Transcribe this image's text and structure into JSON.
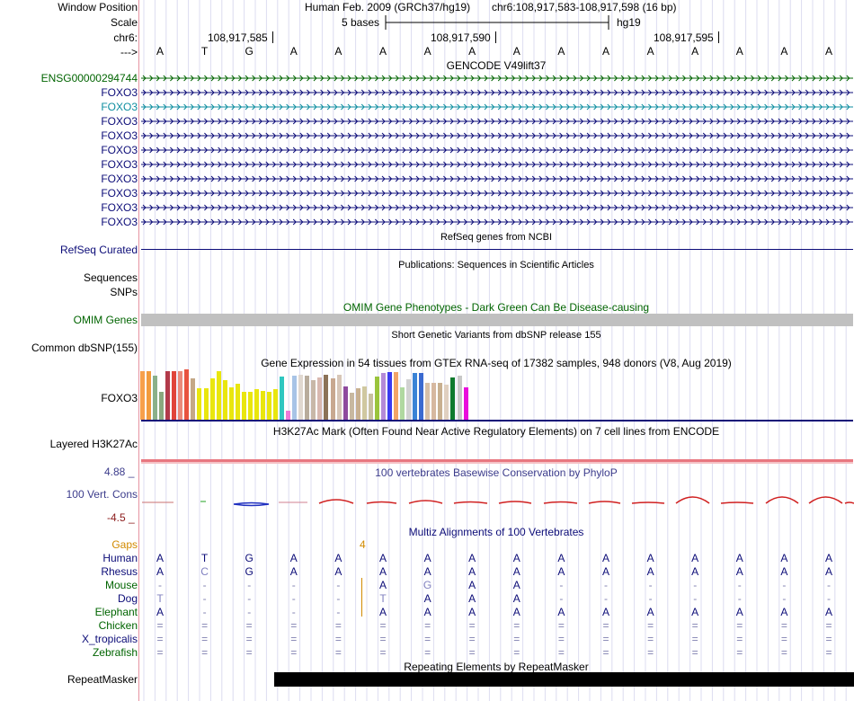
{
  "header": {
    "window_position_label": "Window Position",
    "assembly": "Human Feb. 2009 (GRCh37/hg19)",
    "position": "chr6:108,917,583-108,917,598 (16 bp)",
    "scale_label": "Scale",
    "scale_text": "5 bases",
    "db": "hg19",
    "chrom_label": "chr6:",
    "coords": [
      "108,917,585",
      "108,917,590",
      "108,917,595"
    ],
    "arrow_label": "--->"
  },
  "ruler_bases": [
    "A",
    "T",
    "G",
    "A",
    "A",
    "A",
    "A",
    "A",
    "A",
    "A",
    "A",
    "A",
    "A",
    "A",
    "A",
    "A"
  ],
  "gencode": {
    "title": "GENCODE V49lift37",
    "transcripts": [
      {
        "name": "ENSG00000294744",
        "color": "#006400"
      },
      {
        "name": "FOXO3",
        "color": "#0c0c78"
      },
      {
        "name": "FOXO3",
        "color": "#0e8ea0"
      },
      {
        "name": "FOXO3",
        "color": "#0c0c78"
      },
      {
        "name": "FOXO3",
        "color": "#0c0c78"
      },
      {
        "name": "FOXO3",
        "color": "#0c0c78"
      },
      {
        "name": "FOXO3",
        "color": "#0c0c78"
      },
      {
        "name": "FOXO3",
        "color": "#0c0c78"
      },
      {
        "name": "FOXO3",
        "color": "#0c0c78"
      },
      {
        "name": "FOXO3",
        "color": "#0c0c78"
      },
      {
        "name": "FOXO3",
        "color": "#0c0c78"
      }
    ]
  },
  "refseq": {
    "title": "RefSeq genes from NCBI",
    "label": "RefSeq Curated",
    "color": "#0c0c78"
  },
  "publications": {
    "title": "Publications: Sequences in Scientific Articles",
    "label1": "Sequences",
    "label2": "SNPs"
  },
  "omim": {
    "title": "OMIM Gene Phenotypes - Dark Green Can Be Disease-causing",
    "label": "OMIM Genes",
    "color": "#006400",
    "bar_color": "#c0c0c0"
  },
  "dbsnp": {
    "title": "Short Genetic Variants from dbSNP release 155",
    "label": "Common dbSNP(155)"
  },
  "gtex": {
    "title": "Gene Expression in 54 tissues from GTEx RNA-seq of 17382 samples, 948 donors (V8, Aug 2019)",
    "label": "FOXO3",
    "bars": [
      {
        "v": 0.96,
        "c": "#f7a04b"
      },
      {
        "v": 0.96,
        "c": "#f29b3c"
      },
      {
        "v": 0.88,
        "c": "#8ab08a"
      },
      {
        "v": 0.56,
        "c": "#8aa87e"
      },
      {
        "v": 0.96,
        "c": "#b23a4a"
      },
      {
        "v": 0.96,
        "c": "#e0443a"
      },
      {
        "v": 0.96,
        "c": "#ea8a7a"
      },
      {
        "v": 1.0,
        "c": "#e8533f"
      },
      {
        "v": 0.82,
        "c": "#c4a886"
      },
      {
        "v": 0.62,
        "c": "#e9e60e"
      },
      {
        "v": 0.62,
        "c": "#e9e60e"
      },
      {
        "v": 0.82,
        "c": "#e9e60e"
      },
      {
        "v": 0.96,
        "c": "#e9e60e"
      },
      {
        "v": 0.78,
        "c": "#e9e60e"
      },
      {
        "v": 0.64,
        "c": "#e9e60e"
      },
      {
        "v": 0.72,
        "c": "#e9e60e"
      },
      {
        "v": 0.56,
        "c": "#e9e60e"
      },
      {
        "v": 0.56,
        "c": "#e9e60e"
      },
      {
        "v": 0.6,
        "c": "#e9e60e"
      },
      {
        "v": 0.58,
        "c": "#e9e60e"
      },
      {
        "v": 0.56,
        "c": "#e9e60e"
      },
      {
        "v": 0.6,
        "c": "#e9e60e"
      },
      {
        "v": 0.86,
        "c": "#2fc7c0"
      },
      {
        "v": 0.18,
        "c": "#ef7ad8"
      },
      {
        "v": 0.88,
        "c": "#a8c4e6"
      },
      {
        "v": 0.9,
        "c": "#e0d8d0"
      },
      {
        "v": 0.88,
        "c": "#b8ac9c"
      },
      {
        "v": 0.78,
        "c": "#c8b7a8"
      },
      {
        "v": 0.84,
        "c": "#d9b8b0"
      },
      {
        "v": 0.9,
        "c": "#8b7258"
      },
      {
        "v": 0.82,
        "c": "#c8a890"
      },
      {
        "v": 0.9,
        "c": "#d7c6b8"
      },
      {
        "v": 0.66,
        "c": "#8e4a9e"
      },
      {
        "v": 0.54,
        "c": "#c8b8a0"
      },
      {
        "v": 0.62,
        "c": "#c8b090"
      },
      {
        "v": 0.66,
        "c": "#d0c8a0"
      },
      {
        "v": 0.52,
        "c": "#c8c0a0"
      },
      {
        "v": 0.86,
        "c": "#9ac43c"
      },
      {
        "v": 0.92,
        "c": "#b48ad8"
      },
      {
        "v": 0.94,
        "c": "#3b3bf0"
      },
      {
        "v": 0.94,
        "c": "#f2a468"
      },
      {
        "v": 0.64,
        "c": "#b0d8a0"
      },
      {
        "v": 0.8,
        "c": "#d2d2d2"
      },
      {
        "v": 0.92,
        "c": "#3a82d6"
      },
      {
        "v": 0.92,
        "c": "#3a6ad0"
      },
      {
        "v": 0.74,
        "c": "#d6c0a8"
      },
      {
        "v": 0.74,
        "c": "#d6b8a0"
      },
      {
        "v": 0.74,
        "c": "#c8b090"
      },
      {
        "v": 0.7,
        "c": "#e0d0c0"
      },
      {
        "v": 0.84,
        "c": "#0e7a2e"
      },
      {
        "v": 0.88,
        "c": "#c8c8c8"
      },
      {
        "v": 0.64,
        "c": "#e90edc"
      }
    ]
  },
  "h3k27ac": {
    "title": "H3K27Ac Mark (Often Found Near Active Regulatory Elements) on 7 cell lines from ENCODE",
    "label": "Layered H3K27Ac"
  },
  "phylop": {
    "title": "100 vertebrates Basewise Conservation by PhyloP",
    "label": "100 Vert. Cons",
    "max": "4.88 _",
    "min": "-4.5 _"
  },
  "multiz": {
    "title": "Multiz Alignments of 100 Vertebrates",
    "gaps_label": "Gaps",
    "gap_count": "4",
    "species": [
      {
        "name": "Human",
        "color": "#0c0c78",
        "seq": [
          "A",
          "T",
          "G",
          "A",
          "A",
          "A",
          "A",
          "A",
          "A",
          "A",
          "A",
          "A",
          "A",
          "A",
          "A",
          "A"
        ]
      },
      {
        "name": "Rhesus",
        "color": "#0c0c78",
        "seq": [
          "A",
          "C",
          "G",
          "A",
          "A",
          "A",
          "A",
          "A",
          "A",
          "A",
          "A",
          "A",
          "A",
          "A",
          "A",
          "A"
        ]
      },
      {
        "name": "Mouse",
        "color": "#006400",
        "seq": [
          "-",
          "-",
          "-",
          "-",
          "-",
          "A",
          "G",
          "A",
          "A",
          "-",
          "-",
          "-",
          "-",
          "-",
          "-",
          "-"
        ]
      },
      {
        "name": "Dog",
        "color": "#0c0c78",
        "seq": [
          "T",
          "-",
          "-",
          "-",
          "-",
          "T",
          "A",
          "A",
          "A",
          "-",
          "-",
          "-",
          "-",
          "-",
          "-",
          "-"
        ]
      },
      {
        "name": "Elephant",
        "color": "#006400",
        "seq": [
          "A",
          "-",
          "-",
          "-",
          "-",
          "A",
          "A",
          "A",
          "A",
          "A",
          "A",
          "A",
          "A",
          "A",
          "A",
          "A"
        ]
      },
      {
        "name": "Chicken",
        "color": "#006400",
        "seq": [
          "=",
          "=",
          "=",
          "=",
          "=",
          "=",
          "=",
          "=",
          "=",
          "=",
          "=",
          "=",
          "=",
          "=",
          "=",
          "="
        ]
      },
      {
        "name": "X_tropicalis",
        "color": "#0c0c78",
        "seq": [
          "=",
          "=",
          "=",
          "=",
          "=",
          "=",
          "=",
          "=",
          "=",
          "=",
          "=",
          "=",
          "=",
          "=",
          "=",
          "="
        ]
      },
      {
        "name": "Zebrafish",
        "color": "#006400",
        "seq": [
          "=",
          "=",
          "=",
          "=",
          "=",
          "=",
          "=",
          "=",
          "=",
          "=",
          "=",
          "=",
          "=",
          "=",
          "=",
          "="
        ]
      }
    ]
  },
  "repeatmasker": {
    "title": "Repeating Elements by RepeatMasker",
    "label": "RepeatMasker"
  }
}
